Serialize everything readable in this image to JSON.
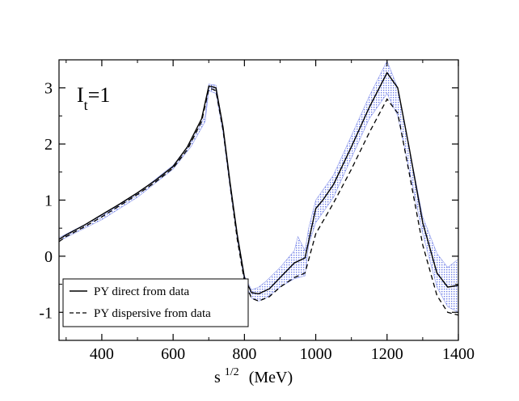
{
  "chart_data": {
    "type": "line",
    "title": "",
    "annotation": {
      "main": "I",
      "sub": "t",
      "rest": "=1"
    },
    "xlabel": {
      "main": "s",
      "sup": "1/2",
      "rest": "(MeV)"
    },
    "ylabel": "",
    "xlim": [
      280,
      1400
    ],
    "ylim": [
      -1.5,
      3.5
    ],
    "xticks": [
      400,
      600,
      800,
      1000,
      1200,
      1400
    ],
    "yticks": [
      3,
      2,
      1,
      0,
      -1
    ],
    "ytick_labels": [
      "3",
      "2",
      "1",
      "0",
      "-1"
    ],
    "grid": false,
    "legend_position": "bottom-left",
    "band": {
      "name": "uncertainty band",
      "color": "#6f7fe8",
      "upper": [
        [
          280,
          0.33
        ],
        [
          400,
          0.72
        ],
        [
          500,
          1.12
        ],
        [
          600,
          1.62
        ],
        [
          650,
          2.03
        ],
        [
          690,
          2.5
        ],
        [
          700,
          3.07
        ],
        [
          720,
          3.05
        ],
        [
          740,
          2.3
        ],
        [
          760,
          1.3
        ],
        [
          780,
          0.4
        ],
        [
          800,
          -0.35
        ],
        [
          820,
          -0.6
        ],
        [
          840,
          -0.55
        ],
        [
          860,
          -0.45
        ],
        [
          900,
          -0.2
        ],
        [
          940,
          0.1
        ],
        [
          950,
          0.35
        ],
        [
          970,
          0.1
        ],
        [
          980,
          0.5
        ],
        [
          1000,
          1.0
        ],
        [
          1050,
          1.45
        ],
        [
          1100,
          2.15
        ],
        [
          1150,
          2.85
        ],
        [
          1200,
          3.48
        ],
        [
          1230,
          3.0
        ],
        [
          1260,
          2.0
        ],
        [
          1300,
          0.7
        ],
        [
          1340,
          0.05
        ],
        [
          1370,
          -0.2
        ],
        [
          1400,
          -0.05
        ]
      ],
      "lower": [
        [
          280,
          0.27
        ],
        [
          400,
          0.65
        ],
        [
          500,
          1.05
        ],
        [
          600,
          1.55
        ],
        [
          650,
          1.95
        ],
        [
          690,
          2.4
        ],
        [
          700,
          2.95
        ],
        [
          720,
          2.9
        ],
        [
          740,
          2.2
        ],
        [
          760,
          1.2
        ],
        [
          780,
          0.3
        ],
        [
          800,
          -0.45
        ],
        [
          820,
          -0.75
        ],
        [
          840,
          -0.8
        ],
        [
          860,
          -0.75
        ],
        [
          900,
          -0.55
        ],
        [
          940,
          -0.4
        ],
        [
          970,
          -0.35
        ],
        [
          980,
          0.2
        ],
        [
          1000,
          0.6
        ],
        [
          1050,
          1.05
        ],
        [
          1100,
          1.75
        ],
        [
          1150,
          2.45
        ],
        [
          1200,
          2.9
        ],
        [
          1230,
          2.5
        ],
        [
          1260,
          1.6
        ],
        [
          1300,
          0.4
        ],
        [
          1340,
          -0.55
        ],
        [
          1370,
          -0.9
        ],
        [
          1400,
          -1.0
        ]
      ]
    },
    "series": [
      {
        "name": "PY direct from data",
        "style": "solid",
        "color": "#000000",
        "points": [
          [
            280,
            0.3
          ],
          [
            300,
            0.38
          ],
          [
            350,
            0.55
          ],
          [
            400,
            0.74
          ],
          [
            450,
            0.93
          ],
          [
            500,
            1.13
          ],
          [
            550,
            1.35
          ],
          [
            600,
            1.6
          ],
          [
            640,
            1.95
          ],
          [
            680,
            2.45
          ],
          [
            700,
            3.03
          ],
          [
            710,
            3.02
          ],
          [
            720,
            3.0
          ],
          [
            740,
            2.3
          ],
          [
            760,
            1.3
          ],
          [
            780,
            0.38
          ],
          [
            800,
            -0.38
          ],
          [
            820,
            -0.65
          ],
          [
            840,
            -0.67
          ],
          [
            870,
            -0.58
          ],
          [
            900,
            -0.38
          ],
          [
            940,
            -0.12
          ],
          [
            970,
            -0.03
          ],
          [
            1000,
            0.85
          ],
          [
            1020,
            1.0
          ],
          [
            1050,
            1.28
          ],
          [
            1100,
            1.95
          ],
          [
            1150,
            2.65
          ],
          [
            1200,
            3.27
          ],
          [
            1230,
            3.0
          ],
          [
            1260,
            2.0
          ],
          [
            1300,
            0.6
          ],
          [
            1340,
            -0.3
          ],
          [
            1370,
            -0.55
          ],
          [
            1400,
            -0.52
          ]
        ]
      },
      {
        "name": "PY dispersive from data",
        "style": "dashed",
        "color": "#000000",
        "points": [
          [
            280,
            0.26
          ],
          [
            300,
            0.35
          ],
          [
            350,
            0.52
          ],
          [
            400,
            0.7
          ],
          [
            450,
            0.9
          ],
          [
            500,
            1.1
          ],
          [
            550,
            1.32
          ],
          [
            600,
            1.57
          ],
          [
            640,
            1.9
          ],
          [
            680,
            2.4
          ],
          [
            700,
            2.98
          ],
          [
            710,
            2.98
          ],
          [
            720,
            2.95
          ],
          [
            740,
            2.25
          ],
          [
            760,
            1.25
          ],
          [
            780,
            0.3
          ],
          [
            800,
            -0.45
          ],
          [
            820,
            -0.75
          ],
          [
            840,
            -0.8
          ],
          [
            870,
            -0.72
          ],
          [
            900,
            -0.55
          ],
          [
            940,
            -0.38
          ],
          [
            970,
            -0.3
          ],
          [
            1000,
            0.4
          ],
          [
            1050,
            0.95
          ],
          [
            1100,
            1.55
          ],
          [
            1150,
            2.2
          ],
          [
            1200,
            2.8
          ],
          [
            1230,
            2.55
          ],
          [
            1260,
            1.55
          ],
          [
            1300,
            0.2
          ],
          [
            1340,
            -0.7
          ],
          [
            1370,
            -1.0
          ],
          [
            1400,
            -1.05
          ]
        ]
      }
    ],
    "legend": [
      {
        "label": "PY direct from data",
        "style": "solid"
      },
      {
        "label": "PY dispersive from data",
        "style": "dashed"
      }
    ]
  }
}
